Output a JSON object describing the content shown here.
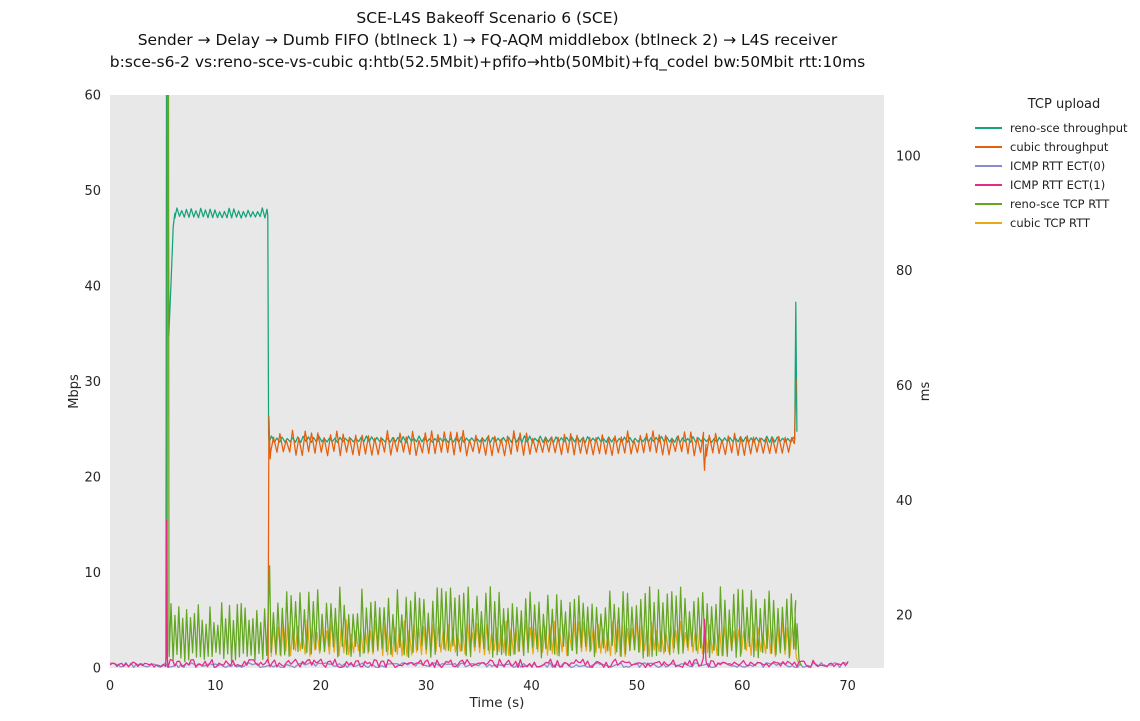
{
  "title": {
    "line1": "SCE-L4S Bakeoff Scenario 6 (SCE)",
    "line2": "Sender → Delay → Dumb FIFO (btlneck 1) → FQ-AQM middlebox (btlneck 2) → L4S receiver",
    "line3": "b:sce-s6-2 vs:reno-sce-vs-cubic q:htb(52.5Mbit)+pfifo→htb(50Mbit)+fq_codel bw:50Mbit rtt:10ms"
  },
  "chart_data": {
    "type": "line",
    "title": "SCE-L4S Bakeoff Scenario 6 (SCE)",
    "xlabel": "Time (s)",
    "ylabel_left": "Mbps",
    "ylabel_right": "ms",
    "legend_title": "TCP upload",
    "legend_position": "right",
    "grid": false,
    "plot_bg": "#e8e8e8",
    "xlim": [
      0,
      73.45
    ],
    "x_ticks": [
      0,
      10,
      20,
      30,
      40,
      50,
      60,
      70
    ],
    "left_lim": [
      0,
      60
    ],
    "left_ticks": [
      0,
      10,
      20,
      30,
      40,
      50,
      60
    ],
    "right_lim": [
      10.8,
      110.6
    ],
    "right_ticks": [
      20,
      40,
      60,
      80,
      100
    ],
    "seed": 7,
    "series": [
      {
        "name": "reno-sce throughput",
        "color": "#15a37a",
        "axis": "mbps",
        "z": 1,
        "summary": "starts t=5.3s, slow-start spike to >60 Mbps, dip to ~35, steady ~47.6 Mbps until 15s, then ~23.9 Mbps sharing with cubic until 65s, final spike ~38 Mbps",
        "segments": [
          {
            "type": "pts",
            "pts": [
              [
                5.3,
                0.4
              ],
              [
                5.36,
                61
              ],
              [
                5.5,
                61
              ],
              [
                5.58,
                34.8
              ],
              [
                5.8,
                40.5
              ],
              [
                6.0,
                46.2
              ],
              [
                6.15,
                47.6
              ]
            ]
          },
          {
            "type": "saw",
            "t": [
              6.15,
              14.9
            ],
            "min": 47.1,
            "max": 48.2,
            "period": 0.45
          },
          {
            "type": "pts",
            "pts": [
              [
                14.97,
                47.4
              ],
              [
                15.05,
                24.3
              ]
            ]
          },
          {
            "type": "saw",
            "t": [
              15.1,
              64.9
            ],
            "min": 23.6,
            "max": 24.3,
            "period": 0.5
          },
          {
            "type": "pts",
            "pts": [
              [
                64.98,
                23.9
              ],
              [
                65.08,
                38.3
              ],
              [
                65.18,
                24.8
              ]
            ]
          }
        ]
      },
      {
        "name": "cubic throughput",
        "color": "#e55f0d",
        "axis": "mbps",
        "z": 2,
        "summary": "starts t=15s spike ~26.3 Mbps, oscillates ~22.2-24.9 Mbps, dip to ~20.7 at 56.4s, final spike ~30 Mbps at 65s",
        "segments": [
          {
            "type": "pts",
            "pts": [
              [
                15.0,
                0.6
              ],
              [
                15.08,
                26.3
              ],
              [
                15.2,
                21.9
              ]
            ]
          },
          {
            "type": "saw",
            "t": [
              15.25,
              56.2
            ],
            "min": 22.2,
            "max": 24.9,
            "period": 0.6
          },
          {
            "type": "pts",
            "pts": [
              [
                56.3,
                23.2
              ],
              [
                56.42,
                20.7
              ],
              [
                56.55,
                23.4
              ]
            ]
          },
          {
            "type": "saw",
            "t": [
              56.6,
              64.85
            ],
            "min": 22.2,
            "max": 24.9,
            "period": 0.6
          },
          {
            "type": "pts",
            "pts": [
              [
                64.95,
                23.5
              ],
              [
                65.1,
                30.2
              ]
            ]
          }
        ]
      },
      {
        "name": "ICMP RTT ECT(0)",
        "color": "#8a8bce",
        "axis": "ms",
        "z": 3,
        "summary": "flat ~11.3 ms for 0-70s",
        "segments": [
          {
            "type": "flat",
            "t": [
              0,
              70.15
            ],
            "v": 11.3,
            "jitter": 0.45,
            "step": 0.25
          }
        ]
      },
      {
        "name": "ICMP RTT ECT(1)",
        "color": "#e7298a",
        "axis": "ms",
        "z": 6,
        "summary": "flat ~11.5 ms, spike ~36 ms at t=5.4s, spike ~19 ms at t=56.4s, runs to 70s",
        "segments": [
          {
            "type": "flat",
            "t": [
              0,
              5.28
            ],
            "v": 11.4,
            "jitter": 0.5,
            "step": 0.22
          },
          {
            "type": "pts",
            "pts": [
              [
                5.33,
                13
              ],
              [
                5.38,
                36.5
              ],
              [
                5.45,
                12.5
              ]
            ]
          },
          {
            "type": "flat",
            "t": [
              5.5,
              56.2
            ],
            "v": 11.6,
            "jitter": 0.75,
            "step": 0.22
          },
          {
            "type": "pts",
            "pts": [
              [
                56.3,
                12.5
              ],
              [
                56.42,
                19.3
              ],
              [
                56.55,
                12.2
              ]
            ]
          },
          {
            "type": "flat",
            "t": [
              56.6,
              70.1
            ],
            "v": 11.5,
            "jitter": 0.65,
            "step": 0.22
          }
        ]
      },
      {
        "name": "reno-sce TCP RTT",
        "color": "#63a621",
        "axis": "ms",
        "z": 5,
        "summary": "spike off-scale (>110 ms) at t=5.45s, sawtooth ~11.7-22.6 ms until 15s, spike ~28.6 ms, sawtooth ~12.5-25 ms until 65s",
        "segments": [
          {
            "type": "pts",
            "pts": [
              [
                5.42,
                13
              ],
              [
                5.45,
                112
              ],
              [
                5.55,
                112
              ],
              [
                5.6,
                14
              ]
            ]
          },
          {
            "type": "saw",
            "t": [
              5.62,
              14.9
            ],
            "min": 11.7,
            "max": 22.6,
            "period": 0.37
          },
          {
            "type": "pts",
            "pts": [
              [
                15.0,
                20
              ],
              [
                15.15,
                28.6
              ],
              [
                15.28,
                13.5
              ]
            ]
          },
          {
            "type": "saw",
            "t": [
              15.32,
              64.9
            ],
            "min": 12.5,
            "max": 25.0,
            "period": 0.42
          },
          {
            "type": "pts",
            "pts": [
              [
                65.0,
                21
              ],
              [
                65.1,
                14
              ],
              [
                65.2,
                18.5
              ],
              [
                65.38,
                12.3
              ],
              [
                65.55,
                11.3
              ]
            ]
          }
        ]
      },
      {
        "name": "cubic TCP RTT",
        "color": "#eba816",
        "axis": "ms",
        "z": 4,
        "summary": "sawtooth ~12.8-19.2 ms from 15s to 65s",
        "segments": [
          {
            "type": "saw",
            "t": [
              15.3,
              64.9
            ],
            "min": 12.8,
            "max": 19.2,
            "period": 0.46
          },
          {
            "type": "pts",
            "pts": [
              [
                65.0,
                15
              ],
              [
                65.15,
                12.6
              ],
              [
                65.3,
                11.8
              ]
            ]
          }
        ]
      }
    ]
  }
}
